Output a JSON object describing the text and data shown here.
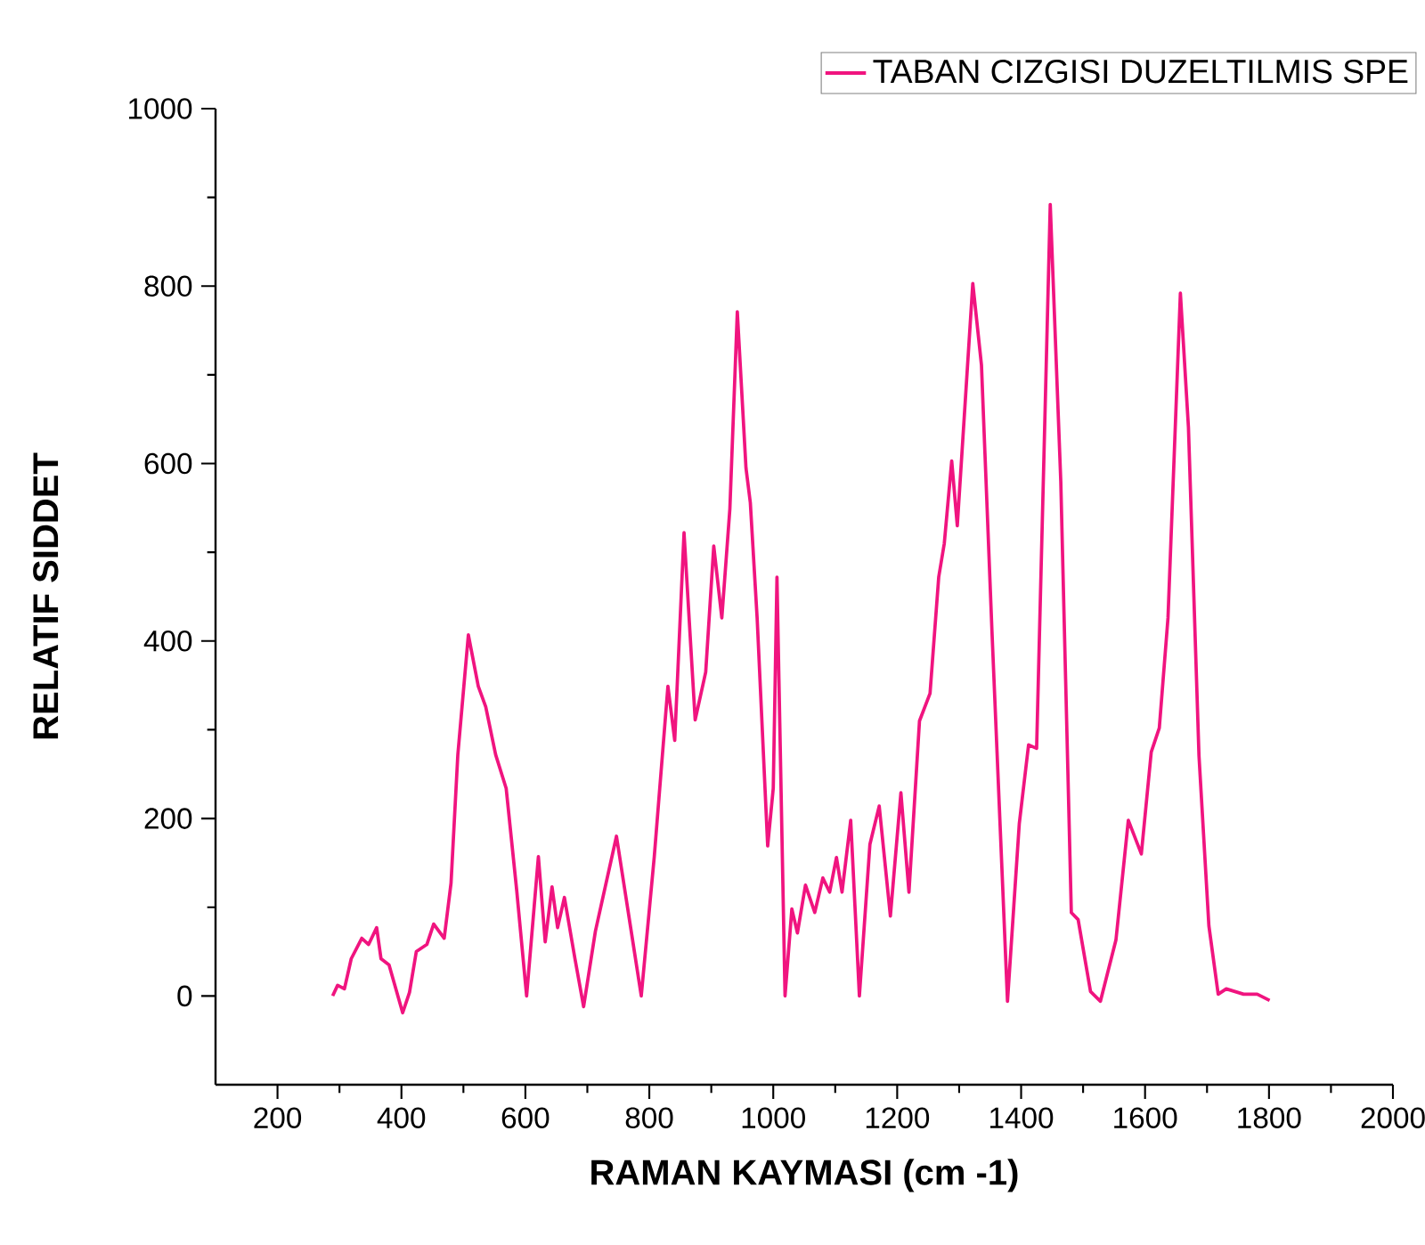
{
  "chart_data": {
    "type": "line",
    "xlabel": "RAMAN KAYMASI (cm -1)",
    "ylabel": "RELATIF SIDDET",
    "xlim": [
      100,
      2000
    ],
    "ylim": [
      -100,
      1000
    ],
    "xticks": [
      200,
      400,
      600,
      800,
      1000,
      1200,
      1400,
      1600,
      1800,
      2000
    ],
    "yticks": [
      0,
      200,
      400,
      600,
      800,
      1000
    ],
    "legend": "top right",
    "grid": false,
    "marker": "none",
    "line_style": "solid",
    "series": [
      {
        "name": "TABAN CIZGISI DUZELTILMIS SPE",
        "color": "#f0147f",
        "x": [
          289,
          297,
          308,
          319,
          336,
          347,
          360,
          367,
          380,
          402,
          413,
          424,
          441,
          452,
          469,
          480,
          491,
          508,
          524,
          536,
          552,
          569,
          586,
          602,
          621,
          632,
          643,
          652,
          663,
          680,
          694,
          713,
          747,
          769,
          787,
          808,
          830,
          841,
          856,
          874,
          891,
          904,
          917,
          930,
          942,
          956,
          963,
          974,
          991,
          1000,
          1006,
          1019,
          1030,
          1039,
          1052,
          1067,
          1080,
          1091,
          1102,
          1111,
          1125,
          1139,
          1156,
          1171,
          1189,
          1206,
          1219,
          1236,
          1253,
          1267,
          1276,
          1288,
          1297,
          1322,
          1336,
          1353,
          1378,
          1397,
          1412,
          1425,
          1447,
          1464,
          1481,
          1492,
          1512,
          1528,
          1553,
          1573,
          1594,
          1610,
          1623,
          1637,
          1657,
          1670,
          1687,
          1703,
          1718,
          1731,
          1759,
          1781,
          1801
        ],
        "values": [
          0,
          12,
          8,
          42,
          65,
          58,
          77,
          42,
          35,
          -19,
          4,
          50,
          58,
          81,
          65,
          127,
          272,
          407,
          349,
          326,
          272,
          234,
          119,
          0,
          157,
          61,
          123,
          77,
          111,
          42,
          -12,
          73,
          180,
          81,
          0,
          157,
          349,
          288,
          522,
          311,
          365,
          507,
          426,
          549,
          771,
          595,
          556,
          426,
          169,
          234,
          472,
          0,
          98,
          71,
          125,
          94,
          133,
          117,
          156,
          117,
          198,
          0,
          171,
          214,
          90,
          229,
          117,
          310,
          341,
          472,
          510,
          603,
          530,
          803,
          711,
          410,
          -6,
          194,
          283,
          279,
          892,
          580,
          94,
          86,
          5,
          -6,
          63,
          198,
          160,
          275,
          302,
          426,
          792,
          641,
          271,
          79,
          2,
          8,
          2,
          2,
          -5
        ]
      }
    ]
  }
}
